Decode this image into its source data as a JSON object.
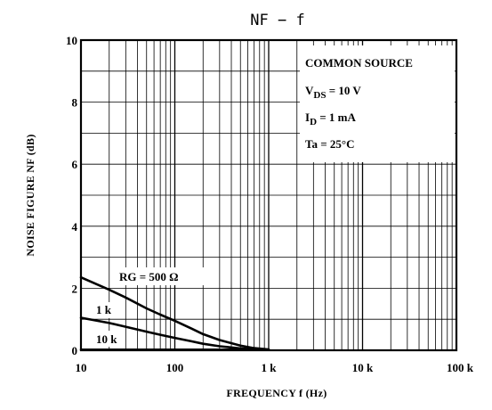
{
  "chart_data": {
    "type": "line",
    "title": "NF − f",
    "xlabel": "FREQUENCY   f   (Hz)",
    "ylabel": "NOISE FIGURE   NF   (dB)",
    "x_scale": "log",
    "xlim": [
      10,
      100000
    ],
    "ylim": [
      0,
      10
    ],
    "grid": true,
    "x_ticks": [
      10,
      100,
      1000,
      10000,
      100000
    ],
    "x_tick_labels": [
      "10",
      "100",
      "1 k",
      "10 k",
      "100 k"
    ],
    "y_ticks": [
      0,
      2,
      4,
      6,
      8,
      10
    ],
    "y_tick_labels": [
      "0",
      "2",
      "4",
      "6",
      "8",
      "10"
    ],
    "conditions": {
      "line1": "COMMON SOURCE",
      "line2_main": "V",
      "line2_sub": "DS",
      "line2_rest": " = 10 V",
      "line3_main": "I",
      "line3_sub": "D",
      "line3_rest": " = 1 mA",
      "line4": "Ta = 25°C"
    },
    "series": [
      {
        "name": "RG = 500 Ω",
        "x": [
          10,
          20,
          30,
          50,
          70,
          100,
          150,
          200,
          300,
          500,
          700,
          1000
        ],
        "y": [
          2.35,
          1.95,
          1.7,
          1.35,
          1.15,
          0.95,
          0.7,
          0.52,
          0.33,
          0.15,
          0.07,
          0.03
        ]
      },
      {
        "name": "1 k",
        "x": [
          10,
          20,
          30,
          50,
          70,
          100,
          150,
          200,
          300,
          500,
          700,
          1000
        ],
        "y": [
          1.05,
          0.88,
          0.76,
          0.6,
          0.5,
          0.4,
          0.29,
          0.21,
          0.13,
          0.06,
          0.03,
          0.02
        ]
      },
      {
        "name": "10 k",
        "x": [
          10,
          30,
          100,
          300,
          1000
        ],
        "y": [
          0.02,
          0.02,
          0.02,
          0.02,
          0.02
        ]
      }
    ]
  }
}
